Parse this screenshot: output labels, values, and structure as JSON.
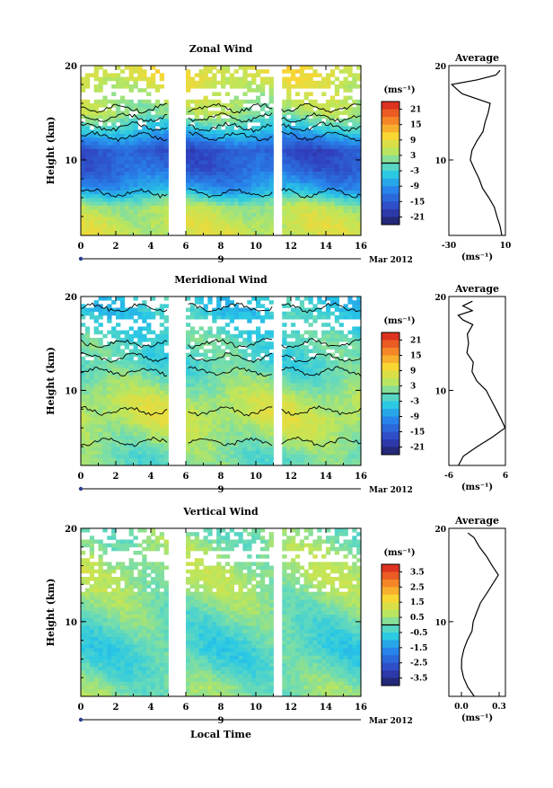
{
  "chart_data": [
    {
      "type": "heatmap",
      "title": "Zonal Wind",
      "xlabel": "",
      "ylabel": "Height (km)",
      "xlim": [
        0,
        16
      ],
      "ylim": [
        2,
        20
      ],
      "x_ticks": [
        "0",
        "2",
        "4",
        "6",
        "8",
        "10",
        "12",
        "14",
        "16"
      ],
      "y_ticks": [
        "10",
        "20"
      ],
      "day_marker": "9",
      "month_label": "Mar 2012",
      "data_gaps": [
        [
          5.0,
          6.0
        ],
        [
          11.0,
          11.4
        ]
      ],
      "colorbar": {
        "unit": "(ms⁻¹)",
        "vmin": -24,
        "vmax": 24,
        "ticks": [
          "21",
          "15",
          "9",
          "3",
          "-3",
          "-9",
          "-15",
          "-21"
        ]
      },
      "height_profile": [
        {
          "h": 3,
          "u": 6
        },
        {
          "h": 5,
          "u": 4
        },
        {
          "h": 7,
          "u": -8
        },
        {
          "h": 9,
          "u": -14
        },
        {
          "h": 11,
          "u": -16
        },
        {
          "h": 13,
          "u": -6
        },
        {
          "h": 15,
          "u": 3
        },
        {
          "h": 17,
          "u": 5
        },
        {
          "h": 19,
          "u": 8
        }
      ],
      "average": {
        "title": "Average",
        "xlabel": "(ms⁻¹)",
        "xlim": [
          -30,
          10
        ],
        "x_ticks": [
          "-30",
          "10"
        ],
        "y_ticks": [
          "10",
          "20"
        ],
        "profile": [
          {
            "h": 2.0,
            "v": 8
          },
          {
            "h": 3.0,
            "v": 6
          },
          {
            "h": 4.0,
            "v": 4
          },
          {
            "h": 5.0,
            "v": 2
          },
          {
            "h": 6.0,
            "v": -2
          },
          {
            "h": 7.0,
            "v": -6
          },
          {
            "h": 8.0,
            "v": -9
          },
          {
            "h": 9.0,
            "v": -12
          },
          {
            "h": 10.0,
            "v": -15
          },
          {
            "h": 11.0,
            "v": -14
          },
          {
            "h": 12.0,
            "v": -10
          },
          {
            "h": 13.0,
            "v": -6
          },
          {
            "h": 14.0,
            "v": -4
          },
          {
            "h": 15.0,
            "v": -2
          },
          {
            "h": 16.0,
            "v": -1
          },
          {
            "h": 17.0,
            "v": -20
          },
          {
            "h": 17.5,
            "v": -24
          },
          {
            "h": 18.0,
            "v": -28
          },
          {
            "h": 18.5,
            "v": -10
          },
          {
            "h": 19.0,
            "v": 3
          },
          {
            "h": 19.5,
            "v": 6
          }
        ]
      }
    },
    {
      "type": "heatmap",
      "title": "Meridional Wind",
      "xlabel": "",
      "ylabel": "Height (km)",
      "xlim": [
        0,
        16
      ],
      "ylim": [
        2,
        20
      ],
      "x_ticks": [
        "0",
        "2",
        "4",
        "6",
        "8",
        "10",
        "12",
        "14",
        "16"
      ],
      "y_ticks": [
        "10",
        "20"
      ],
      "day_marker": "9",
      "month_label": "Mar 2012",
      "data_gaps": [
        [
          5.0,
          6.0
        ],
        [
          11.0,
          11.4
        ]
      ],
      "colorbar": {
        "unit": "(ms⁻¹)",
        "vmin": -24,
        "vmax": 24,
        "ticks": [
          "21",
          "15",
          "9",
          "3",
          "-3",
          "-9",
          "-15",
          "-21"
        ]
      },
      "height_profile": [
        {
          "h": 3,
          "u": 0
        },
        {
          "h": 5,
          "u": 3
        },
        {
          "h": 7,
          "u": 6
        },
        {
          "h": 9,
          "u": 5
        },
        {
          "h": 11,
          "u": 1
        },
        {
          "h": 13,
          "u": -2
        },
        {
          "h": 15,
          "u": -1
        },
        {
          "h": 17,
          "u": -3
        },
        {
          "h": 19,
          "u": -4
        }
      ],
      "average": {
        "title": "Average",
        "xlabel": "(ms⁻¹)",
        "xlim": [
          -6,
          6
        ],
        "x_ticks": [
          "-6",
          "6"
        ],
        "y_ticks": [
          "10",
          "20"
        ],
        "profile": [
          {
            "h": 2.0,
            "v": -4
          },
          {
            "h": 3.0,
            "v": -3
          },
          {
            "h": 4.0,
            "v": 0
          },
          {
            "h": 5.0,
            "v": 3
          },
          {
            "h": 6.0,
            "v": 6
          },
          {
            "h": 7.0,
            "v": 5
          },
          {
            "h": 8.0,
            "v": 4
          },
          {
            "h": 9.0,
            "v": 3
          },
          {
            "h": 10.0,
            "v": 2
          },
          {
            "h": 11.0,
            "v": 0
          },
          {
            "h": 12.0,
            "v": -1
          },
          {
            "h": 13.0,
            "v": -1
          },
          {
            "h": 14.0,
            "v": -2
          },
          {
            "h": 15.0,
            "v": -2
          },
          {
            "h": 16.0,
            "v": -2
          },
          {
            "h": 17.0,
            "v": -1
          },
          {
            "h": 17.5,
            "v": -3
          },
          {
            "h": 18.0,
            "v": -4
          },
          {
            "h": 18.5,
            "v": -1
          },
          {
            "h": 19.0,
            "v": -3
          },
          {
            "h": 19.5,
            "v": -1
          }
        ]
      }
    },
    {
      "type": "heatmap",
      "title": "Vertical Wind",
      "xlabel": "Local Time",
      "ylabel": "Height (km)",
      "xlim": [
        0,
        16
      ],
      "ylim": [
        2,
        20
      ],
      "x_ticks": [
        "0",
        "2",
        "4",
        "6",
        "8",
        "10",
        "12",
        "14",
        "16"
      ],
      "y_ticks": [
        "10",
        "20"
      ],
      "day_marker": "9",
      "month_label": "Mar 2012",
      "data_gaps": [
        [
          5.0,
          6.0
        ],
        [
          11.0,
          11.4
        ]
      ],
      "colorbar": {
        "unit": "(ms⁻¹)",
        "vmin": -4,
        "vmax": 4,
        "ticks": [
          "3.5",
          "2.5",
          "1.5",
          "0.5",
          "-0.5",
          "-1.5",
          "-2.5",
          "-3.5"
        ]
      },
      "height_profile": [
        {
          "h": 3,
          "u": 0.2
        },
        {
          "h": 5,
          "u": -0.2
        },
        {
          "h": 7,
          "u": -0.4
        },
        {
          "h": 9,
          "u": -0.2
        },
        {
          "h": 11,
          "u": 0.1
        },
        {
          "h": 13,
          "u": 0.4
        },
        {
          "h": 15,
          "u": 0.6
        },
        {
          "h": 17,
          "u": 0.5
        },
        {
          "h": 19,
          "u": 0.2
        }
      ],
      "average": {
        "title": "Average",
        "xlabel": "(ms⁻¹)",
        "xlim": [
          -0.1,
          0.35
        ],
        "x_ticks": [
          "0.0",
          "0.3"
        ],
        "y_ticks": [
          "10",
          "20"
        ],
        "profile": [
          {
            "h": 2.0,
            "v": 0.1
          },
          {
            "h": 3.0,
            "v": 0.05
          },
          {
            "h": 4.0,
            "v": 0.02
          },
          {
            "h": 5.0,
            "v": 0.0
          },
          {
            "h": 6.0,
            "v": 0.0
          },
          {
            "h": 7.0,
            "v": 0.02
          },
          {
            "h": 8.0,
            "v": 0.05
          },
          {
            "h": 9.0,
            "v": 0.08
          },
          {
            "h": 10.0,
            "v": 0.1
          },
          {
            "h": 11.0,
            "v": 0.12
          },
          {
            "h": 12.0,
            "v": 0.15
          },
          {
            "h": 13.0,
            "v": 0.2
          },
          {
            "h": 14.0,
            "v": 0.25
          },
          {
            "h": 15.0,
            "v": 0.3
          },
          {
            "h": 16.0,
            "v": 0.25
          },
          {
            "h": 17.0,
            "v": 0.2
          },
          {
            "h": 18.0,
            "v": 0.15
          },
          {
            "h": 19.0,
            "v": 0.1
          },
          {
            "h": 19.5,
            "v": 0.05
          }
        ]
      }
    }
  ]
}
